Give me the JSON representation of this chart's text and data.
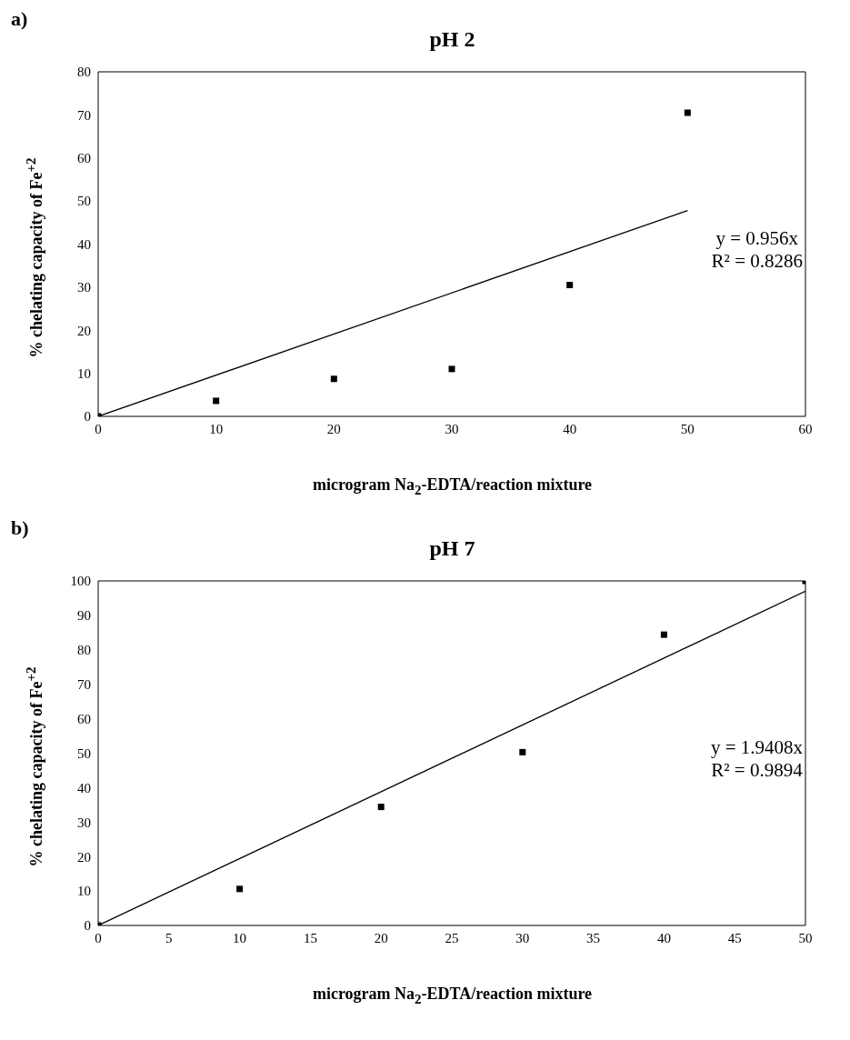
{
  "chart_data": [
    {
      "type": "scatter",
      "title": "pH 2",
      "xlabel": "microgram Na$_{2}$-EDTA/reaction mixture",
      "ylabel": "% chelating capacity of Fe$^{+2}$",
      "annotations": [
        "a)",
        "y = 0.956x",
        "R² = 0.8286"
      ],
      "xlim": [
        0,
        60
      ],
      "xticks": [
        0,
        10,
        20,
        30,
        40,
        50,
        60
      ],
      "ylim": [
        0,
        80
      ],
      "yticks": [
        0,
        10,
        20,
        30,
        40,
        50,
        60,
        70,
        80
      ],
      "grid": false,
      "legend": false,
      "series": [
        {
          "color": "#000000",
          "marker": "square",
          "x": [
            0,
            10,
            20,
            30,
            40,
            50
          ],
          "values": [
            0,
            3.6,
            8.7,
            11,
            30.5,
            70.5
          ]
        },
        {
          "type": "line",
          "marker": "none",
          "color": "#000000",
          "x": [
            0,
            50
          ],
          "values": [
            0,
            47.8
          ]
        }
      ]
    },
    {
      "type": "scatter",
      "title": "pH 7",
      "xlabel": "microgram Na$_{2}$-EDTA/reaction mixture",
      "ylabel": "% chelating capacity of Fe$^{+2}$",
      "annotations": [
        "b)",
        "y = 1.9408x",
        "R² = 0.9894"
      ],
      "xlim": [
        0,
        50
      ],
      "xticks": [
        0,
        5,
        10,
        15,
        20,
        25,
        30,
        35,
        40,
        45,
        50
      ],
      "ylim": [
        0,
        100
      ],
      "yticks": [
        0,
        10,
        20,
        30,
        40,
        50,
        60,
        70,
        80,
        90,
        100
      ],
      "grid": false,
      "legend": false,
      "series": [
        {
          "color": "#000000",
          "marker": "square",
          "x": [
            0,
            10,
            20,
            30,
            40,
            50
          ],
          "values": [
            0,
            10.6,
            34.4,
            50.3,
            84.4,
            100
          ]
        },
        {
          "type": "line",
          "marker": "none",
          "color": "#000000",
          "x": [
            0,
            50
          ],
          "values": [
            0,
            97
          ]
        }
      ]
    }
  ]
}
